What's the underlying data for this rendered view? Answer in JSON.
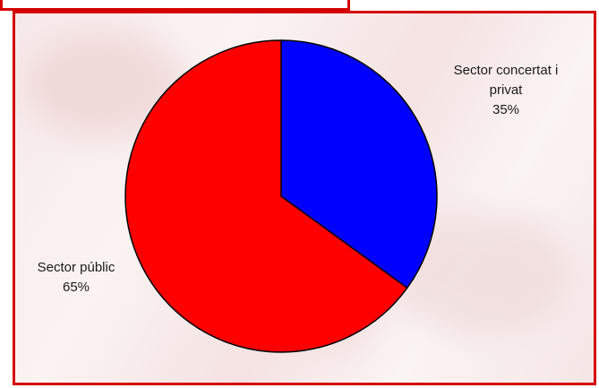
{
  "chart_data": {
    "type": "pie",
    "title": "",
    "slices": [
      {
        "label_lines": [
          "Sector concertat i",
          "privat"
        ],
        "percent_label": "35%",
        "value": 35,
        "color": "#0000ff"
      },
      {
        "label_lines": [
          "Sector públic"
        ],
        "percent_label": "65%",
        "value": 65,
        "color": "#ff0000"
      }
    ],
    "start_angle_deg": 0,
    "direction": "clockwise",
    "stroke_color": "#000000",
    "frame_color": "#d40000"
  }
}
